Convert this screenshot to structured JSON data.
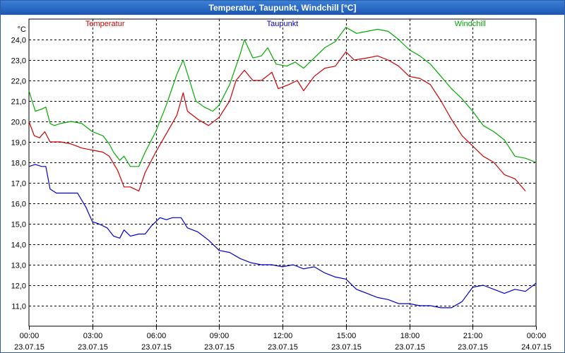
{
  "window": {
    "title": "Temperatur, Taupunkt, Windchill [°C]"
  },
  "chart_data": {
    "type": "line",
    "title": "Temperatur, Taupunkt, Windchill [°C]",
    "ylabel": "°C",
    "xlabel": "",
    "grid": true,
    "ylim": [
      10.0,
      25.0
    ],
    "xlim": [
      0,
      24
    ],
    "yticks": [
      11.0,
      12.0,
      13.0,
      14.0,
      15.0,
      16.0,
      17.0,
      18.0,
      19.0,
      20.0,
      21.0,
      22.0,
      23.0,
      24.0
    ],
    "ytick_labels": [
      "11,0",
      "12,0",
      "13,0",
      "14,0",
      "15,0",
      "16,0",
      "17,0",
      "18,0",
      "19,0",
      "20,0",
      "21,0",
      "22,0",
      "23,0",
      "24,0"
    ],
    "xticks": [
      0,
      3,
      6,
      9,
      12,
      15,
      18,
      21,
      24
    ],
    "xtick_labels": [
      {
        "time": "00:00",
        "date": "23.07.15"
      },
      {
        "time": "03:00",
        "date": "23.07.15"
      },
      {
        "time": "06:00",
        "date": "23.07.15"
      },
      {
        "time": "09:00",
        "date": "23.07.15"
      },
      {
        "time": "12:00",
        "date": "23.07.15"
      },
      {
        "time": "15:00",
        "date": "23.07.15"
      },
      {
        "time": "18:00",
        "date": "23.07.15"
      },
      {
        "time": "21:00",
        "date": "23.07.15"
      },
      {
        "time": "00:00",
        "date": "24.07.15"
      }
    ],
    "series": [
      {
        "name": "Temperatur",
        "color": "#cc0000",
        "points": [
          [
            0,
            20.0
          ],
          [
            0.25,
            19.3
          ],
          [
            0.5,
            19.2
          ],
          [
            0.75,
            19.5
          ],
          [
            1,
            19.0
          ],
          [
            1.5,
            19.0
          ],
          [
            2,
            18.9
          ],
          [
            2.5,
            18.7
          ],
          [
            3,
            18.6
          ],
          [
            3.5,
            18.5
          ],
          [
            3.8,
            18.3
          ],
          [
            4.2,
            17.6
          ],
          [
            4.5,
            16.8
          ],
          [
            4.8,
            16.8
          ],
          [
            5.2,
            16.6
          ],
          [
            5.5,
            17.5
          ],
          [
            6,
            18.5
          ],
          [
            6.5,
            19.4
          ],
          [
            7,
            20.3
          ],
          [
            7.3,
            21.4
          ],
          [
            7.5,
            20.5
          ],
          [
            8,
            20.1
          ],
          [
            8.5,
            19.8
          ],
          [
            9,
            20.2
          ],
          [
            9.5,
            21.0
          ],
          [
            9.8,
            22.0
          ],
          [
            10.2,
            22.5
          ],
          [
            10.6,
            22.0
          ],
          [
            11,
            22.0
          ],
          [
            11.5,
            22.4
          ],
          [
            11.8,
            21.6
          ],
          [
            12.3,
            21.8
          ],
          [
            12.7,
            22.0
          ],
          [
            13,
            21.5
          ],
          [
            13.5,
            22.2
          ],
          [
            14,
            22.6
          ],
          [
            14.5,
            22.7
          ],
          [
            15,
            23.4
          ],
          [
            15.4,
            23.0
          ],
          [
            16,
            23.1
          ],
          [
            16.5,
            23.2
          ],
          [
            17,
            23.0
          ],
          [
            17.5,
            22.7
          ],
          [
            18,
            22.2
          ],
          [
            18.5,
            22.1
          ],
          [
            19,
            21.8
          ],
          [
            19.5,
            21.0
          ],
          [
            20,
            20.1
          ],
          [
            20.5,
            19.3
          ],
          [
            21,
            18.8
          ],
          [
            21.5,
            18.3
          ],
          [
            22,
            18.0
          ],
          [
            22.5,
            17.4
          ],
          [
            23,
            17.2
          ],
          [
            23.5,
            16.6
          ]
        ]
      },
      {
        "name": "Taupunkt",
        "color": "#0000cc",
        "points": [
          [
            0,
            17.8
          ],
          [
            0.3,
            17.9
          ],
          [
            0.6,
            17.8
          ],
          [
            0.8,
            17.8
          ],
          [
            1,
            16.7
          ],
          [
            1.3,
            16.5
          ],
          [
            2,
            16.5
          ],
          [
            2.3,
            16.5
          ],
          [
            2.7,
            15.8
          ],
          [
            3,
            15.1
          ],
          [
            3.3,
            15.0
          ],
          [
            3.7,
            14.8
          ],
          [
            4,
            14.4
          ],
          [
            4.3,
            14.3
          ],
          [
            4.5,
            14.7
          ],
          [
            4.8,
            14.4
          ],
          [
            5.2,
            14.5
          ],
          [
            5.5,
            14.5
          ],
          [
            5.8,
            14.9
          ],
          [
            6.2,
            15.3
          ],
          [
            6.5,
            15.2
          ],
          [
            6.8,
            15.3
          ],
          [
            7.2,
            15.3
          ],
          [
            7.5,
            14.8
          ],
          [
            8,
            14.6
          ],
          [
            8.5,
            14.2
          ],
          [
            9,
            13.7
          ],
          [
            9.5,
            13.6
          ],
          [
            10,
            13.3
          ],
          [
            10.5,
            13.1
          ],
          [
            11,
            13.0
          ],
          [
            11.5,
            13.0
          ],
          [
            12,
            12.9
          ],
          [
            12.5,
            13.0
          ],
          [
            13,
            12.8
          ],
          [
            13.5,
            12.9
          ],
          [
            14,
            12.6
          ],
          [
            14.5,
            12.4
          ],
          [
            15,
            12.3
          ],
          [
            15.5,
            11.8
          ],
          [
            16,
            11.6
          ],
          [
            16.5,
            11.4
          ],
          [
            17,
            11.3
          ],
          [
            17.5,
            11.1
          ],
          [
            18,
            11.1
          ],
          [
            18.5,
            11.0
          ],
          [
            19,
            11.0
          ],
          [
            19.5,
            10.9
          ],
          [
            20,
            10.9
          ],
          [
            20.5,
            11.2
          ],
          [
            21,
            11.9
          ],
          [
            21.5,
            12.0
          ],
          [
            22,
            11.8
          ],
          [
            22.5,
            11.6
          ],
          [
            23,
            11.8
          ],
          [
            23.5,
            11.7
          ],
          [
            24,
            12.1
          ]
        ]
      },
      {
        "name": "Windchill",
        "color": "#00aa00",
        "points": [
          [
            0,
            21.5
          ],
          [
            0.3,
            20.5
          ],
          [
            0.6,
            20.6
          ],
          [
            0.8,
            20.7
          ],
          [
            1,
            19.9
          ],
          [
            1.2,
            19.8
          ],
          [
            1.5,
            19.9
          ],
          [
            2,
            20.0
          ],
          [
            2.5,
            19.9
          ],
          [
            3,
            19.5
          ],
          [
            3.5,
            19.3
          ],
          [
            3.8,
            18.9
          ],
          [
            4,
            18.5
          ],
          [
            4.3,
            18.1
          ],
          [
            4.5,
            18.3
          ],
          [
            4.8,
            17.8
          ],
          [
            5.2,
            17.8
          ],
          [
            5.5,
            18.5
          ],
          [
            6,
            19.5
          ],
          [
            6.5,
            20.8
          ],
          [
            7,
            22.3
          ],
          [
            7.3,
            23.0
          ],
          [
            7.6,
            22.0
          ],
          [
            7.9,
            21.0
          ],
          [
            8.3,
            20.7
          ],
          [
            8.7,
            20.5
          ],
          [
            9,
            20.8
          ],
          [
            9.5,
            21.8
          ],
          [
            10,
            23.3
          ],
          [
            10.2,
            24.0
          ],
          [
            10.6,
            23.1
          ],
          [
            11,
            23.2
          ],
          [
            11.3,
            23.6
          ],
          [
            11.7,
            22.8
          ],
          [
            12.2,
            22.7
          ],
          [
            12.6,
            22.9
          ],
          [
            13,
            22.6
          ],
          [
            13.5,
            23.1
          ],
          [
            14,
            23.6
          ],
          [
            14.5,
            23.9
          ],
          [
            15,
            24.6
          ],
          [
            15.5,
            24.3
          ],
          [
            16,
            24.4
          ],
          [
            16.5,
            24.5
          ],
          [
            17,
            24.4
          ],
          [
            17.5,
            24.0
          ],
          [
            18,
            23.5
          ],
          [
            18.5,
            23.2
          ],
          [
            19,
            22.8
          ],
          [
            19.5,
            22.2
          ],
          [
            20,
            21.6
          ],
          [
            20.5,
            21.1
          ],
          [
            21,
            20.5
          ],
          [
            21.5,
            19.8
          ],
          [
            22,
            19.5
          ],
          [
            22.5,
            19.1
          ],
          [
            23,
            18.3
          ],
          [
            23.5,
            18.2
          ],
          [
            24,
            18.0
          ]
        ]
      }
    ]
  }
}
